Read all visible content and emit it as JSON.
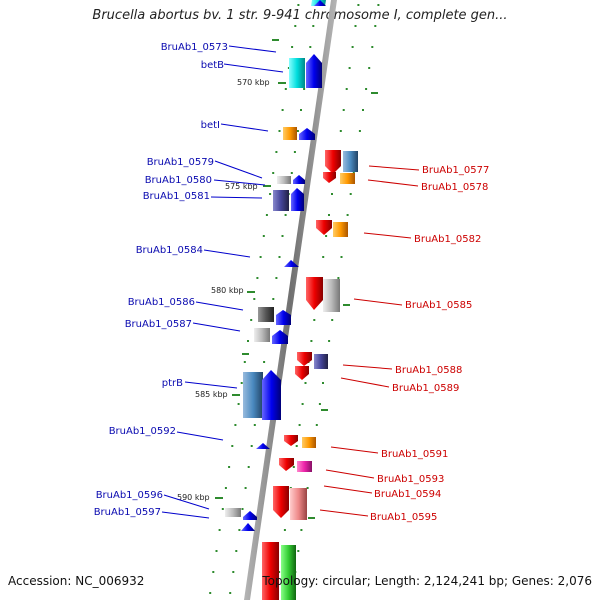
{
  "title": "Brucella abortus bv. 1 str. 9-941 chromosome I, complete gen...",
  "footer": {
    "accession": "Accession: NC_006932",
    "summary": "Topology: circular; Length: 2,124,241 bp; Genes: 2,076"
  },
  "scale_labels": [
    "570 kbp",
    "575 kbp",
    "580 kbp",
    "585 kbp",
    "590 kbp"
  ],
  "left_labels": [
    "BruAb1_0573",
    "betB",
    "betI",
    "BruAb1_0579",
    "BruAb1_0580",
    "BruAb1_0581",
    "BruAb1_0584",
    "BruAb1_0586",
    "BruAb1_0587",
    "ptrB",
    "BruAb1_0592",
    "BruAb1_0596",
    "BruAb1_0597"
  ],
  "right_labels": [
    "BruAb1_0577",
    "BruAb1_0578",
    "BruAb1_0582",
    "BruAb1_0585",
    "BruAb1_0588",
    "BruAb1_0589",
    "BruAb1_0591",
    "BruAb1_0593",
    "BruAb1_0594",
    "BruAb1_0595"
  ],
  "colors": {
    "forward_strand": "#0000ee",
    "reverse_strand": "#ee0000",
    "backbone": "#8a8a8a",
    "tick": "#2e8b2e",
    "label_left": "#0a0ab0",
    "label_right": "#cc0000"
  }
}
